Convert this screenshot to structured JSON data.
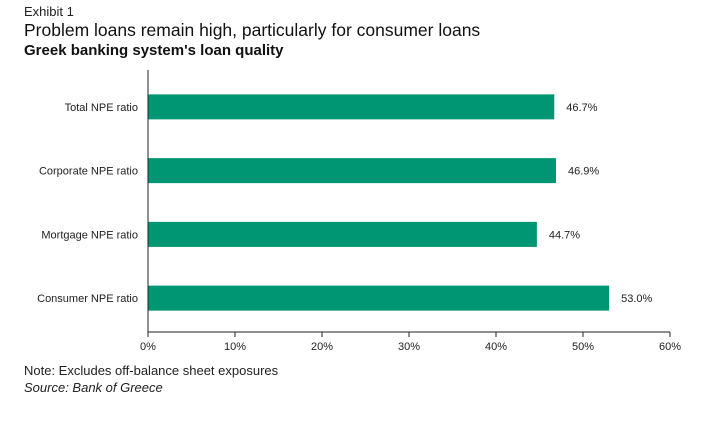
{
  "header": {
    "exhibit": "Exhibit 1"
  },
  "footer": {
    "note": "Note: Excludes off-balance sheet exposures",
    "source": "Source: Bank of Greece"
  },
  "colors": {
    "bar": "#009673",
    "axis": "#222222"
  },
  "chart_data": {
    "type": "bar",
    "orientation": "horizontal",
    "title": "Problem loans remain high, particularly for consumer loans",
    "subtitle": "Greek banking system's loan quality",
    "categories": [
      "Total NPE ratio",
      "Corporate NPE ratio",
      "Mortgage NPE ratio",
      "Consumer NPE ratio"
    ],
    "values": [
      46.7,
      46.9,
      44.7,
      53.0
    ],
    "data_labels": [
      "46.7%",
      "46.9%",
      "44.7%",
      "53.0%"
    ],
    "xlim": [
      0,
      60
    ],
    "xticks": [
      0,
      10,
      20,
      30,
      40,
      50,
      60
    ],
    "xtick_labels": [
      "0%",
      "10%",
      "20%",
      "30%",
      "40%",
      "50%",
      "60%"
    ],
    "xlabel": "",
    "ylabel": "",
    "grid": false,
    "legend": "none"
  }
}
